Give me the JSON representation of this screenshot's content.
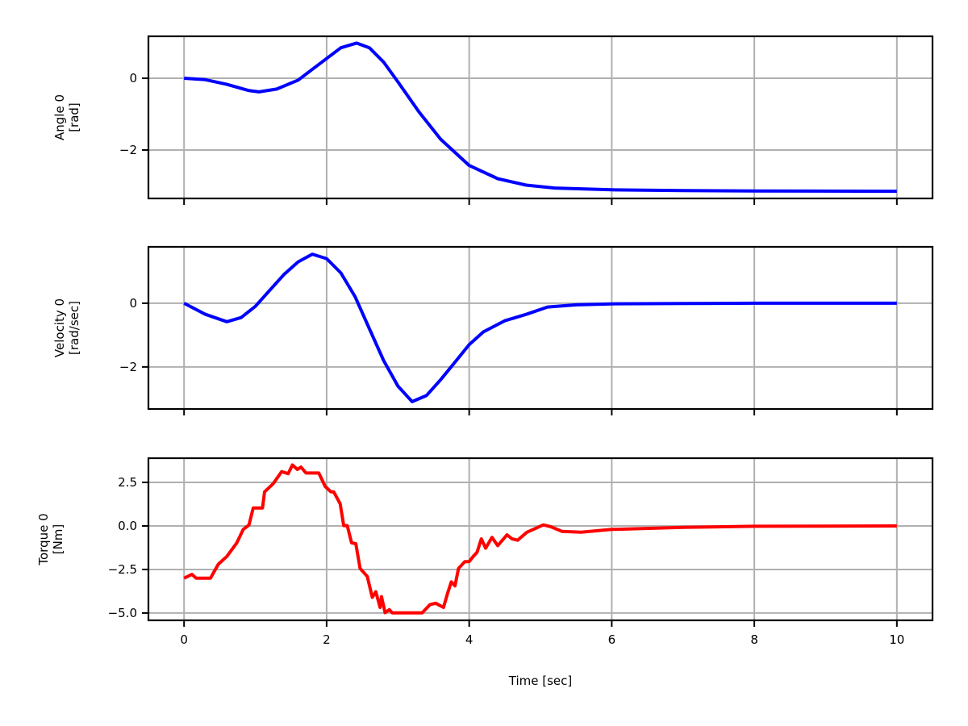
{
  "chart_data": [
    {
      "type": "line",
      "ylabel": [
        "Angle 0",
        "[rad]"
      ],
      "xlabel": "",
      "xlim": [
        -0.5,
        10.5
      ],
      "ylim": [
        -3.35,
        1.17
      ],
      "xticks": [
        0,
        2,
        4,
        6,
        8,
        10
      ],
      "yticks": [
        0,
        -2
      ],
      "ytick_labels": [
        "0",
        "−2"
      ],
      "grid": true,
      "series": [
        {
          "name": "Angle 0",
          "color": "#0000ff",
          "x": [
            0,
            0.3,
            0.6,
            0.9,
            1.05,
            1.3,
            1.6,
            1.9,
            2.2,
            2.42,
            2.6,
            2.8,
            3.0,
            3.3,
            3.6,
            4.0,
            4.4,
            4.8,
            5.2,
            6,
            7,
            8,
            10
          ],
          "y": [
            0,
            -0.04,
            -0.17,
            -0.34,
            -0.38,
            -0.3,
            -0.05,
            0.4,
            0.85,
            0.98,
            0.85,
            0.45,
            -0.1,
            -0.95,
            -1.7,
            -2.43,
            -2.8,
            -2.98,
            -3.06,
            -3.11,
            -3.13,
            -3.14,
            -3.15
          ]
        }
      ]
    },
    {
      "type": "line",
      "ylabel": [
        "Velocity 0",
        "[rad/sec]"
      ],
      "xlabel": "",
      "xlim": [
        -0.5,
        10.5
      ],
      "ylim": [
        -3.32,
        1.77
      ],
      "xticks": [
        0,
        2,
        4,
        6,
        8,
        10
      ],
      "yticks": [
        0,
        -2
      ],
      "ytick_labels": [
        "0",
        "−2"
      ],
      "grid": true,
      "series": [
        {
          "name": "Velocity 0",
          "color": "#0000ff",
          "x": [
            0,
            0.3,
            0.6,
            0.8,
            1.0,
            1.2,
            1.4,
            1.6,
            1.8,
            2.0,
            2.2,
            2.4,
            2.6,
            2.8,
            3.0,
            3.2,
            3.4,
            3.6,
            3.8,
            4.0,
            4.2,
            4.5,
            4.8,
            5.1,
            5.5,
            6,
            7,
            8,
            10
          ],
          "y": [
            0,
            -0.35,
            -0.58,
            -0.45,
            -0.1,
            0.4,
            0.9,
            1.3,
            1.54,
            1.4,
            0.95,
            0.2,
            -0.8,
            -1.8,
            -2.6,
            -3.09,
            -2.9,
            -2.4,
            -1.85,
            -1.3,
            -0.9,
            -0.55,
            -0.35,
            -0.12,
            -0.05,
            -0.02,
            -0.01,
            0,
            0
          ]
        }
      ]
    },
    {
      "type": "line",
      "ylabel": [
        "Torque 0",
        "[Nm]"
      ],
      "xlabel": "Time [sec]",
      "xlim": [
        -0.5,
        10.5
      ],
      "ylim": [
        -5.42,
        3.89
      ],
      "xticks": [
        0,
        2,
        4,
        6,
        8,
        10
      ],
      "xtick_labels": [
        "0",
        "2",
        "4",
        "6",
        "8",
        "10"
      ],
      "yticks": [
        2.5,
        0,
        -2.5,
        -5
      ],
      "ytick_labels": [
        "2.5",
        "0.0",
        "−2.5",
        "−5.0"
      ],
      "grid": true,
      "series": [
        {
          "name": "Torque 0",
          "color": "#ff0000",
          "x": [
            0,
            0.11,
            0.17,
            0.37,
            0.48,
            0.6,
            0.74,
            0.83,
            0.91,
            0.97,
            1.1,
            1.13,
            1.25,
            1.37,
            1.46,
            1.52,
            1.59,
            1.64,
            1.71,
            1.89,
            1.98,
            2.06,
            2.1,
            2.19,
            2.24,
            2.29,
            2.35,
            2.41,
            2.47,
            2.57,
            2.64,
            2.69,
            2.75,
            2.77,
            2.82,
            2.88,
            2.92,
            3.34,
            3.45,
            3.53,
            3.64,
            3.7,
            3.75,
            3.8,
            3.85,
            3.94,
            4.0,
            4.06,
            4.11,
            4.17,
            4.23,
            4.32,
            4.4,
            4.53,
            4.6,
            4.68,
            4.81,
            5.04,
            5.15,
            5.3,
            5.57,
            6,
            7,
            8,
            10
          ],
          "y": [
            -3.0,
            -2.78,
            -3.0,
            -3.0,
            -2.2,
            -1.75,
            -0.97,
            -0.2,
            0.05,
            1.03,
            1.03,
            1.96,
            2.42,
            3.12,
            3.0,
            3.5,
            3.24,
            3.38,
            3.04,
            3.04,
            2.27,
            1.96,
            1.96,
            1.27,
            0.02,
            0.02,
            -0.97,
            -1.02,
            -2.44,
            -2.9,
            -4.1,
            -3.78,
            -4.68,
            -4.06,
            -4.98,
            -4.81,
            -4.99,
            -4.99,
            -4.52,
            -4.44,
            -4.68,
            -3.83,
            -3.21,
            -3.44,
            -2.44,
            -2.05,
            -2.05,
            -1.74,
            -1.51,
            -0.74,
            -1.28,
            -0.66,
            -1.13,
            -0.51,
            -0.74,
            -0.82,
            -0.36,
            0.06,
            -0.05,
            -0.31,
            -0.36,
            -0.2,
            -0.08,
            -0.02,
            0
          ]
        }
      ]
    }
  ]
}
